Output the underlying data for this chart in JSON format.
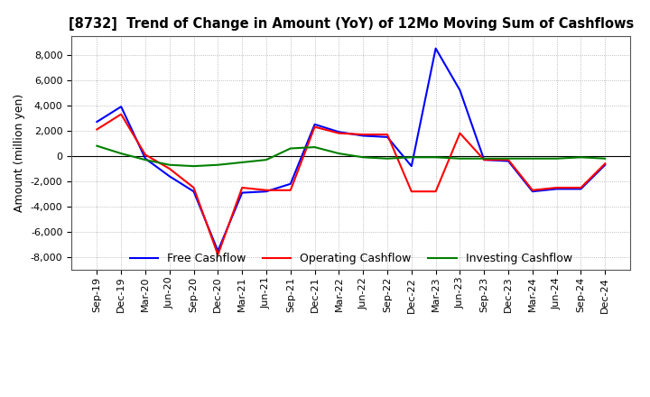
{
  "title": "[8732]  Trend of Change in Amount (YoY) of 12Mo Moving Sum of Cashflows",
  "ylabel": "Amount (million yen)",
  "background_color": "#ffffff",
  "grid_color": "#aaaaaa",
  "xlabels": [
    "Sep-19",
    "Dec-19",
    "Mar-20",
    "Jun-20",
    "Sep-20",
    "Dec-20",
    "Mar-21",
    "Jun-21",
    "Sep-21",
    "Dec-21",
    "Mar-22",
    "Jun-22",
    "Sep-22",
    "Dec-22",
    "Mar-23",
    "Jun-23",
    "Sep-23",
    "Dec-23",
    "Mar-24",
    "Jun-24",
    "Sep-24",
    "Dec-24"
  ],
  "operating": [
    2100,
    3300,
    100,
    -1000,
    -2500,
    -7800,
    -2500,
    -2700,
    -2700,
    2300,
    1800,
    1700,
    1700,
    -2800,
    -2800,
    1800,
    -300,
    -300,
    -2700,
    -2500,
    -2500,
    -600
  ],
  "investing": [
    800,
    200,
    -300,
    -700,
    -800,
    -700,
    -500,
    -300,
    600,
    700,
    200,
    -100,
    -200,
    -100,
    -100,
    -200,
    -200,
    -200,
    -200,
    -200,
    -100,
    -200
  ],
  "free": [
    2700,
    3900,
    -200,
    -1600,
    -2800,
    -7500,
    -2900,
    -2800,
    -2200,
    2500,
    1900,
    1600,
    1500,
    -800,
    8500,
    5200,
    -300,
    -400,
    -2800,
    -2600,
    -2600,
    -700
  ],
  "ylim": [
    -9000,
    9500
  ],
  "yticks": [
    -8000,
    -6000,
    -4000,
    -2000,
    0,
    2000,
    4000,
    6000,
    8000
  ],
  "operating_color": "#ff0000",
  "investing_color": "#008000",
  "free_color": "#0000ff",
  "line_width": 1.5
}
